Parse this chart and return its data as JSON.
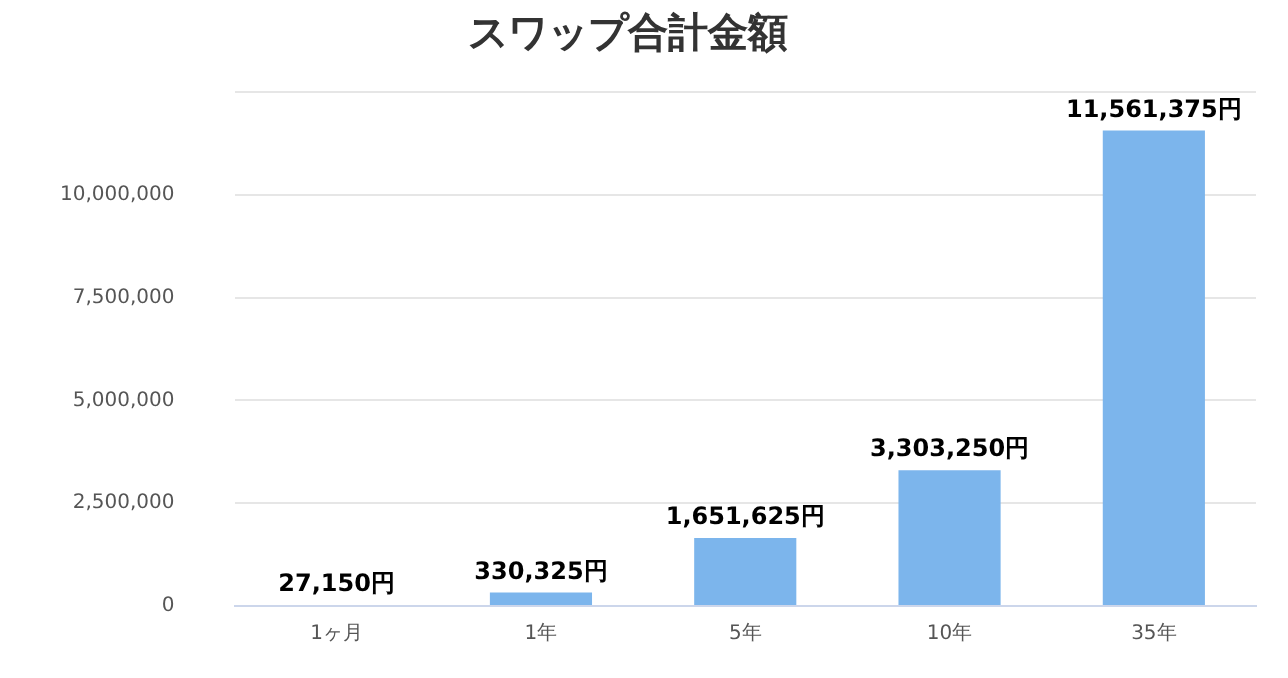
{
  "chart_data": {
    "type": "bar",
    "title": "スワップ合計金額",
    "categories": [
      "1ヶ月",
      "1年",
      "5年",
      "10年",
      "35年"
    ],
    "values": [
      27150,
      330325,
      1651625,
      3303250,
      11561375
    ],
    "value_labels": [
      "27,150円",
      "330,325円",
      "1,651,625円",
      "3,303,250円",
      "11,561,375円"
    ],
    "color": "#7cb5ec",
    "ylim": [
      0,
      12500000
    ],
    "yticks": [
      0,
      {
        "value": 2500000,
        "label": "2,500,000"
      },
      {
        "value": 5000000,
        "label": "5,000,000"
      },
      {
        "value": 7500000,
        "label": "7,500,000"
      },
      {
        "value": 10000000,
        "label": "10,000,000"
      },
      {
        "value": 12500000,
        "label": null
      }
    ],
    "grid": "y",
    "legend": false
  }
}
